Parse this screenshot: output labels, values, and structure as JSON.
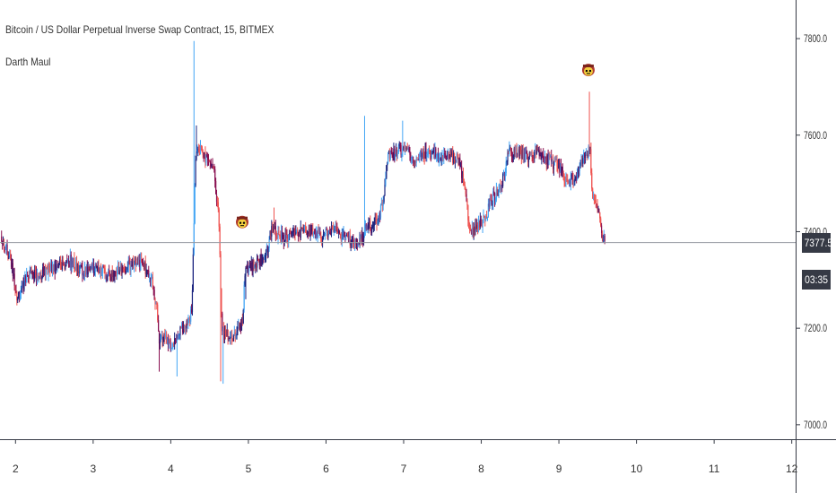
{
  "header": {
    "symbol_title": "Bitcoin / US Dollar Perpetual Inverse Swap Contract, 15, BITMEX",
    "indicator_name": "Darth Maul"
  },
  "current_price": {
    "value": "7377.5",
    "countdown": "03:35"
  },
  "colors": {
    "background": "#ffffff",
    "axis_line": "#363a45",
    "price_line": "#9598a1",
    "bull_light": "#42a5f5",
    "bull_dark": "#1a237e",
    "bear_light": "#ef5350",
    "bear_dark": "#880e4f",
    "label_box": "#363a45"
  },
  "chart_data": {
    "type": "candlestick",
    "title": "Bitcoin / US Dollar Perpetual Inverse Swap Contract, 15, BITMEX",
    "xlabel": "",
    "ylabel": "",
    "x_ticks": [
      "2",
      "3",
      "4",
      "5",
      "6",
      "7",
      "8",
      "9",
      "10",
      "11",
      "12"
    ],
    "y_ticks": [
      "7000.0",
      "7200.0",
      "7400.0",
      "7600.0",
      "7800.0"
    ],
    "ylim": [
      6970,
      7880
    ],
    "xlim": [
      1.8,
      12.05
    ],
    "grid": false,
    "indicator": "Darth Maul",
    "markers": [
      {
        "type": "emoji-signal",
        "x": 4.92,
        "price": 7420
      },
      {
        "type": "emoji-signal",
        "x": 9.38,
        "price": 7735
      }
    ],
    "price_path": [
      [
        1.82,
        7390
      ],
      [
        1.95,
        7330
      ],
      [
        2.02,
        7260
      ],
      [
        2.15,
        7310
      ],
      [
        2.3,
        7310
      ],
      [
        2.5,
        7325
      ],
      [
        2.7,
        7340
      ],
      [
        2.85,
        7320
      ],
      [
        3.0,
        7325
      ],
      [
        3.2,
        7310
      ],
      [
        3.4,
        7325
      ],
      [
        3.55,
        7335
      ],
      [
        3.65,
        7330
      ],
      [
        3.75,
        7300
      ],
      [
        3.82,
        7240
      ],
      [
        3.85,
        7180
      ],
      [
        3.95,
        7170
      ],
      [
        4.05,
        7170
      ],
      [
        4.15,
        7200
      ],
      [
        4.27,
        7230
      ],
      [
        4.32,
        7550
      ],
      [
        4.35,
        7580
      ],
      [
        4.45,
        7550
      ],
      [
        4.55,
        7535
      ],
      [
        4.62,
        7430
      ],
      [
        4.66,
        7190
      ],
      [
        4.8,
        7185
      ],
      [
        4.92,
        7210
      ],
      [
        4.96,
        7320
      ],
      [
        5.1,
        7330
      ],
      [
        5.25,
        7360
      ],
      [
        5.3,
        7410
      ],
      [
        5.38,
        7390
      ],
      [
        5.5,
        7385
      ],
      [
        5.65,
        7400
      ],
      [
        5.8,
        7400
      ],
      [
        5.95,
        7390
      ],
      [
        6.1,
        7410
      ],
      [
        6.25,
        7385
      ],
      [
        6.35,
        7375
      ],
      [
        6.45,
        7380
      ],
      [
        6.52,
        7410
      ],
      [
        6.6,
        7410
      ],
      [
        6.72,
        7450
      ],
      [
        6.8,
        7555
      ],
      [
        6.95,
        7570
      ],
      [
        7.05,
        7570
      ],
      [
        7.12,
        7550
      ],
      [
        7.25,
        7560
      ],
      [
        7.4,
        7560
      ],
      [
        7.55,
        7555
      ],
      [
        7.7,
        7550
      ],
      [
        7.78,
        7500
      ],
      [
        7.85,
        7400
      ],
      [
        7.95,
        7410
      ],
      [
        8.05,
        7430
      ],
      [
        8.15,
        7470
      ],
      [
        8.25,
        7490
      ],
      [
        8.35,
        7560
      ],
      [
        8.45,
        7570
      ],
      [
        8.6,
        7555
      ],
      [
        8.75,
        7560
      ],
      [
        8.85,
        7545
      ],
      [
        9.0,
        7540
      ],
      [
        9.1,
        7500
      ],
      [
        9.2,
        7510
      ],
      [
        9.3,
        7550
      ],
      [
        9.37,
        7560
      ],
      [
        9.4,
        7580
      ],
      [
        9.43,
        7470
      ],
      [
        9.5,
        7450
      ],
      [
        9.56,
        7400
      ],
      [
        9.59,
        7377.5
      ]
    ]
  }
}
